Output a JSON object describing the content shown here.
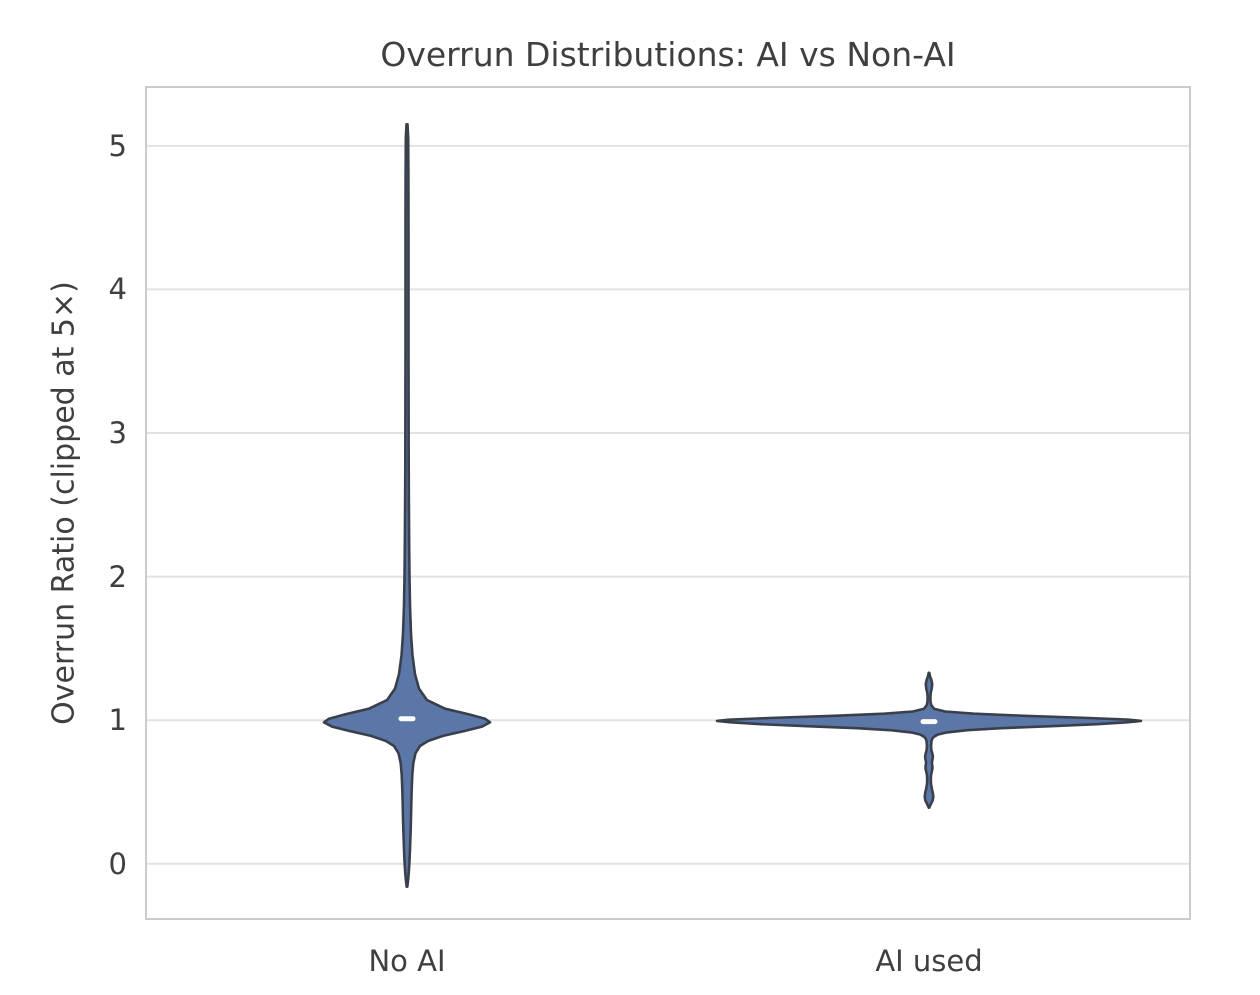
{
  "chart_data": {
    "type": "violin",
    "title": "Overrun Distributions: AI vs Non-AI",
    "ylabel": "Overrun Ratio (clipped at 5×)",
    "xlabel": "",
    "categories": [
      "No AI",
      "AI used"
    ],
    "yticks": [
      0,
      1,
      2,
      3,
      4,
      5
    ],
    "yrange": {
      "min": -0.385,
      "max": 5.41
    },
    "grid": "horizontal-only",
    "legend": "none",
    "colors": {
      "fill": "#5b77a8",
      "edge": "#3a404b",
      "grid": "#e2e2e2",
      "frame": "#cbcbcb",
      "median": "#fafafa",
      "text": "#3f3f3f",
      "background": "#ffffff"
    },
    "violins": [
      {
        "category": "No AI",
        "x_frac": 0.25,
        "median": 1.01,
        "value_range": [
          -0.15,
          5.15
        ],
        "shape_note": "narrow spike up to ~5.15 (clipped tail), dense bulge near 1.0, thin tail down to ~-0.15",
        "profile": [
          [
            5.15,
            0.5
          ],
          [
            5.05,
            1.2
          ],
          [
            4.8,
            1.4
          ],
          [
            4.4,
            1.5
          ],
          [
            4.0,
            1.5
          ],
          [
            3.6,
            1.5
          ],
          [
            3.2,
            1.6
          ],
          [
            2.8,
            1.7
          ],
          [
            2.5,
            1.9
          ],
          [
            2.2,
            2.2
          ],
          [
            2.0,
            2.5
          ],
          [
            1.8,
            3.0
          ],
          [
            1.6,
            4.0
          ],
          [
            1.45,
            5.5
          ],
          [
            1.32,
            8
          ],
          [
            1.22,
            12
          ],
          [
            1.14,
            20
          ],
          [
            1.08,
            38
          ],
          [
            1.04,
            62
          ],
          [
            1.01,
            78
          ],
          [
            0.985,
            83
          ],
          [
            0.955,
            75
          ],
          [
            0.925,
            58
          ],
          [
            0.89,
            36
          ],
          [
            0.855,
            21
          ],
          [
            0.82,
            13
          ],
          [
            0.77,
            8.5
          ],
          [
            0.7,
            6.3
          ],
          [
            0.62,
            5.3
          ],
          [
            0.52,
            4.7
          ],
          [
            0.42,
            4.3
          ],
          [
            0.32,
            4.0
          ],
          [
            0.22,
            3.6
          ],
          [
            0.12,
            3.1
          ],
          [
            0.02,
            2.5
          ],
          [
            -0.06,
            1.8
          ],
          [
            -0.12,
            1.0
          ],
          [
            -0.16,
            0.3
          ]
        ]
      },
      {
        "category": "AI used",
        "x_frac": 0.75,
        "median": 0.99,
        "value_range": [
          0.39,
          1.33
        ],
        "shape_note": "very wide flat lens at ~1.0 with small bead bumps at ~1.24 above and ~0.75, 0.68, 0.47 below",
        "profile": [
          [
            1.33,
            0.3
          ],
          [
            1.305,
            1.0
          ],
          [
            1.28,
            2.4
          ],
          [
            1.25,
            3.2
          ],
          [
            1.22,
            2.7
          ],
          [
            1.19,
            1.7
          ],
          [
            1.16,
            1.4
          ],
          [
            1.13,
            1.5
          ],
          [
            1.105,
            2.2
          ],
          [
            1.08,
            5
          ],
          [
            1.06,
            16
          ],
          [
            1.045,
            45
          ],
          [
            1.03,
            95
          ],
          [
            1.015,
            160
          ],
          [
            1.003,
            200
          ],
          [
            0.995,
            212
          ],
          [
            0.985,
            198
          ],
          [
            0.972,
            168
          ],
          [
            0.958,
            122
          ],
          [
            0.944,
            72
          ],
          [
            0.93,
            38
          ],
          [
            0.915,
            18
          ],
          [
            0.9,
            9
          ],
          [
            0.885,
            5
          ],
          [
            0.87,
            3.2
          ],
          [
            0.85,
            2.4
          ],
          [
            0.82,
            2.1
          ],
          [
            0.79,
            2.4
          ],
          [
            0.765,
            3.4
          ],
          [
            0.745,
            3.9
          ],
          [
            0.725,
            3.5
          ],
          [
            0.705,
            2.9
          ],
          [
            0.685,
            3.3
          ],
          [
            0.665,
            3.5
          ],
          [
            0.645,
            2.9
          ],
          [
            0.62,
            2.1
          ],
          [
            0.59,
            1.8
          ],
          [
            0.555,
            2.0
          ],
          [
            0.52,
            2.9
          ],
          [
            0.49,
            3.9
          ],
          [
            0.465,
            4.3
          ],
          [
            0.44,
            3.6
          ],
          [
            0.42,
            2.2
          ],
          [
            0.4,
            0.8
          ],
          [
            0.39,
            0.3
          ]
        ]
      }
    ]
  }
}
